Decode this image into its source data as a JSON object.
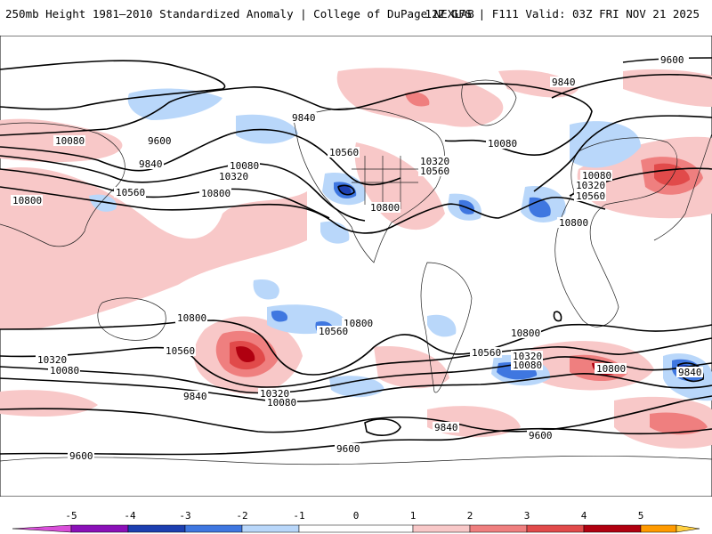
{
  "header": {
    "title": "250mb Height 1981–2010 Standardized Anomaly | College of DuPage NEXLAB",
    "run_info": "12Z GFS | F111 Valid: 03Z FRI NOV 21 2025"
  },
  "contour_labels": [
    "9600",
    "9840",
    "10080",
    "10320",
    "10560",
    "10800"
  ],
  "colorbar": {
    "ticks": [
      "-5",
      "-4",
      "-3",
      "-2",
      "-1",
      "0",
      "1",
      "2",
      "3",
      "4",
      "5"
    ],
    "colors": {
      "n5": "#d94fd9",
      "n4": "#8a10b8",
      "n3": "#1c3fb0",
      "n2": "#3f77e0",
      "n1": "#b9d7fa",
      "zero": "#ffffff",
      "p1": "#f8c8c8",
      "p2": "#ef7f7f",
      "p3": "#e14a4a",
      "p4": "#b00010",
      "p5": "#ff9a00",
      "p6": "#ffcf40"
    }
  },
  "map_labels": [
    {
      "text": "9600",
      "id": "c1"
    },
    {
      "text": "9840",
      "id": "c2"
    },
    {
      "text": "9840",
      "id": "c3"
    },
    {
      "text": "9600",
      "id": "c4"
    },
    {
      "text": "10080",
      "id": "c5"
    },
    {
      "text": "9840",
      "id": "c6"
    },
    {
      "text": "10080",
      "id": "c7"
    },
    {
      "text": "10320",
      "id": "c8"
    },
    {
      "text": "10560",
      "id": "c9"
    },
    {
      "text": "10800",
      "id": "c10"
    },
    {
      "text": "10800",
      "id": "c11"
    },
    {
      "text": "10560",
      "id": "c12"
    },
    {
      "text": "10320",
      "id": "c13"
    },
    {
      "text": "10560",
      "id": "c14"
    },
    {
      "text": "10080",
      "id": "c15"
    },
    {
      "text": "10800",
      "id": "c16"
    },
    {
      "text": "10080",
      "id": "c17"
    },
    {
      "text": "10320",
      "id": "c18"
    },
    {
      "text": "10560",
      "id": "c19"
    },
    {
      "text": "10800",
      "id": "c20"
    },
    {
      "text": "10800",
      "id": "c21"
    },
    {
      "text": "10800",
      "id": "c22"
    },
    {
      "text": "10560",
      "id": "c23"
    },
    {
      "text": "10560",
      "id": "c24"
    },
    {
      "text": "10320",
      "id": "c25"
    },
    {
      "text": "10080",
      "id": "c26"
    },
    {
      "text": "10320",
      "id": "c27"
    },
    {
      "text": "10080",
      "id": "c28"
    },
    {
      "text": "9840",
      "id": "c29"
    },
    {
      "text": "10800",
      "id": "c30"
    },
    {
      "text": "10560",
      "id": "c31"
    },
    {
      "text": "10320",
      "id": "c32"
    },
    {
      "text": "10080",
      "id": "c33"
    },
    {
      "text": "10800",
      "id": "c34"
    },
    {
      "text": "9840",
      "id": "c35"
    },
    {
      "text": "9600",
      "id": "c36"
    },
    {
      "text": "9840",
      "id": "c37"
    },
    {
      "text": "9600",
      "id": "c38"
    },
    {
      "text": "9600",
      "id": "c39"
    }
  ]
}
